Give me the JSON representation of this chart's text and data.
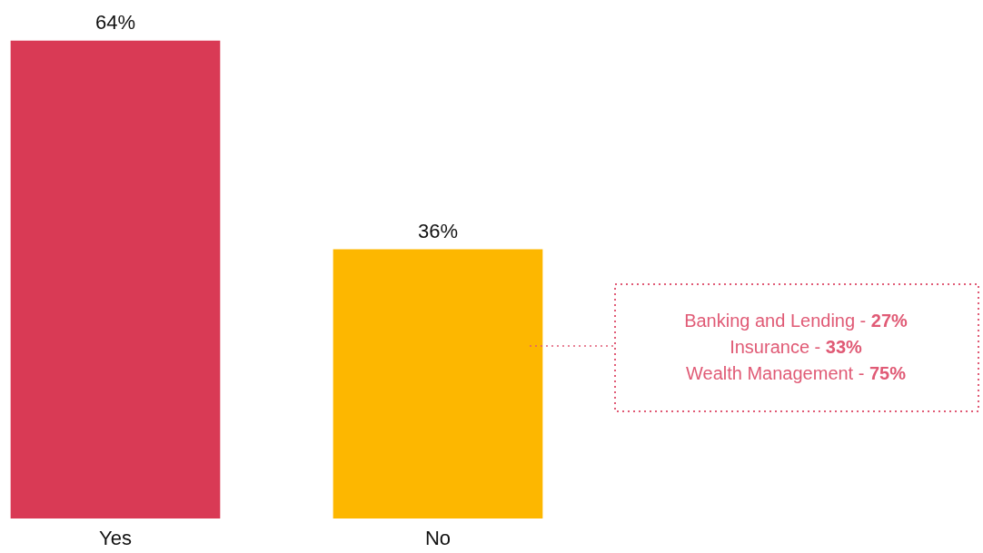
{
  "chart_data": {
    "type": "bar",
    "categories": [
      "Yes",
      "No"
    ],
    "colors": [
      "#d93a55",
      "#fdb700"
    ],
    "values": [
      64,
      36
    ],
    "value_labels": [
      "64%",
      "36%"
    ],
    "ylim": [
      0,
      64
    ],
    "annotations": [
      "Banking and Lending - 27%",
      "Insurance - 33%",
      "Wealth Management - 75%"
    ]
  }
}
